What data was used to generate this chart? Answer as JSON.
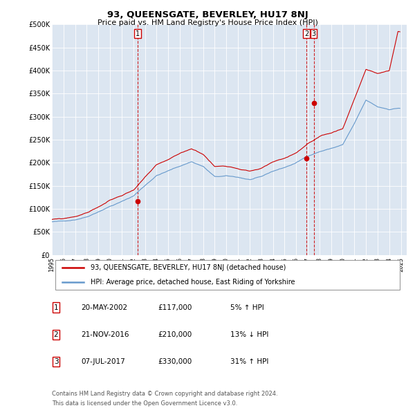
{
  "title": "93, QUEENSGATE, BEVERLEY, HU17 8NJ",
  "subtitle": "Price paid vs. HM Land Registry's House Price Index (HPI)",
  "ylim": [
    0,
    500000
  ],
  "yticks": [
    0,
    50000,
    100000,
    150000,
    200000,
    250000,
    300000,
    350000,
    400000,
    450000,
    500000
  ],
  "ytick_labels": [
    "£0",
    "£50K",
    "£100K",
    "£150K",
    "£200K",
    "£250K",
    "£300K",
    "£350K",
    "£400K",
    "£450K",
    "£500K"
  ],
  "xlim_start": 1995.0,
  "xlim_end": 2025.5,
  "plot_bg_color": "#dce6f1",
  "red_color": "#cc0000",
  "blue_color": "#6699cc",
  "legend_label_red": "93, QUEENSGATE, BEVERLEY, HU17 8NJ (detached house)",
  "legend_label_blue": "HPI: Average price, detached house, East Riding of Yorkshire",
  "sale_markers": [
    {
      "num": 1,
      "year": 2002.38,
      "price": 117000,
      "date": "20-MAY-2002",
      "amount": "£117,000",
      "pct": "5% ↑ HPI"
    },
    {
      "num": 2,
      "year": 2016.89,
      "price": 210000,
      "date": "21-NOV-2016",
      "amount": "£210,000",
      "pct": "13% ↓ HPI"
    },
    {
      "num": 3,
      "year": 2017.51,
      "price": 330000,
      "date": "07-JUL-2017",
      "amount": "£330,000",
      "pct": "31% ↑ HPI"
    }
  ],
  "footer_line1": "Contains HM Land Registry data © Crown copyright and database right 2024.",
  "footer_line2": "This data is licensed under the Open Government Licence v3.0.",
  "hpi_seed": 42,
  "prop_seed": 99
}
